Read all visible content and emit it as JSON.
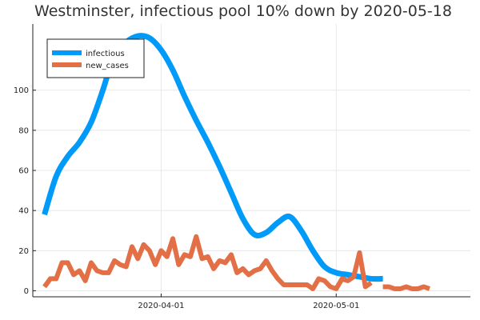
{
  "chart_data": {
    "type": "line",
    "title": "Westminster, infectious pool 10% down by 2020-05-18",
    "xlabel": "",
    "ylabel": "",
    "grid": true,
    "legend_position": "top-left",
    "x_axis": {
      "type": "date",
      "range": [
        "2020-03-10",
        "2020-05-24"
      ],
      "ticks": [
        "2020-04-01",
        "2020-05-01"
      ]
    },
    "y_axis": {
      "range": [
        -3,
        133
      ],
      "ticks": [
        0,
        20,
        40,
        60,
        80,
        100
      ]
    },
    "series": [
      {
        "name": "infectious",
        "color": "#009af9",
        "x": [
          "2020-03-12",
          "2020-03-14",
          "2020-03-16",
          "2020-03-18",
          "2020-03-20",
          "2020-03-22",
          "2020-03-24",
          "2020-03-26",
          "2020-03-28",
          "2020-03-30",
          "2020-04-01",
          "2020-04-03",
          "2020-04-05",
          "2020-04-07",
          "2020-04-09",
          "2020-04-11",
          "2020-04-13",
          "2020-04-15",
          "2020-04-17",
          "2020-04-19",
          "2020-04-21",
          "2020-04-23",
          "2020-04-25",
          "2020-04-27",
          "2020-04-29",
          "2020-05-01",
          "2020-05-03",
          "2020-05-05",
          "2020-05-07",
          "2020-05-09",
          "2020-05-11",
          "2020-05-13",
          "2020-05-15",
          "2020-05-17",
          "2020-05-19"
        ],
        "values": [
          38,
          57,
          67,
          74,
          84,
          100,
          118,
          124,
          127,
          126,
          120,
          110,
          97,
          85,
          74,
          62,
          49,
          36,
          28,
          29,
          34,
          37,
          30,
          20,
          12,
          9,
          8,
          7,
          6,
          6,
          null,
          null,
          null,
          null,
          null
        ]
      },
      {
        "name": "new_cases",
        "color": "#e26f46",
        "x": [
          "2020-03-12",
          "2020-03-13",
          "2020-03-14",
          "2020-03-15",
          "2020-03-16",
          "2020-03-17",
          "2020-03-18",
          "2020-03-19",
          "2020-03-20",
          "2020-03-21",
          "2020-03-22",
          "2020-03-23",
          "2020-03-24",
          "2020-03-25",
          "2020-03-26",
          "2020-03-27",
          "2020-03-28",
          "2020-03-29",
          "2020-03-30",
          "2020-03-31",
          "2020-04-01",
          "2020-04-02",
          "2020-04-03",
          "2020-04-04",
          "2020-04-05",
          "2020-04-06",
          "2020-04-07",
          "2020-04-08",
          "2020-04-09",
          "2020-04-10",
          "2020-04-11",
          "2020-04-12",
          "2020-04-13",
          "2020-04-14",
          "2020-04-15",
          "2020-04-16",
          "2020-04-17",
          "2020-04-18",
          "2020-04-19",
          "2020-04-20",
          "2020-04-21",
          "2020-04-22",
          "2020-04-23",
          "2020-04-24",
          "2020-04-25",
          "2020-04-26",
          "2020-04-27",
          "2020-04-28",
          "2020-04-29",
          "2020-04-30",
          "2020-05-01",
          "2020-05-02",
          "2020-05-03",
          "2020-05-04",
          "2020-05-05",
          "2020-05-06",
          "2020-05-07",
          "2020-05-08",
          "2020-05-09",
          "2020-05-10",
          "2020-05-11",
          "2020-05-12",
          "2020-05-13",
          "2020-05-14",
          "2020-05-15",
          "2020-05-16",
          "2020-05-17",
          "2020-05-18"
        ],
        "values": [
          2,
          6,
          6,
          14,
          14,
          8,
          10,
          5,
          14,
          10,
          9,
          9,
          15,
          13,
          12,
          22,
          16,
          23,
          20,
          13,
          20,
          17,
          26,
          13,
          18,
          17,
          27,
          16,
          17,
          11,
          15,
          14,
          18,
          9,
          11,
          8,
          10,
          11,
          15,
          10,
          6,
          3,
          3,
          3,
          3,
          3,
          1,
          6,
          5,
          2,
          1,
          6,
          5,
          7,
          19,
          2,
          4,
          null,
          2,
          2,
          1,
          1,
          2,
          1,
          1,
          2,
          1,
          null
        ]
      }
    ]
  }
}
